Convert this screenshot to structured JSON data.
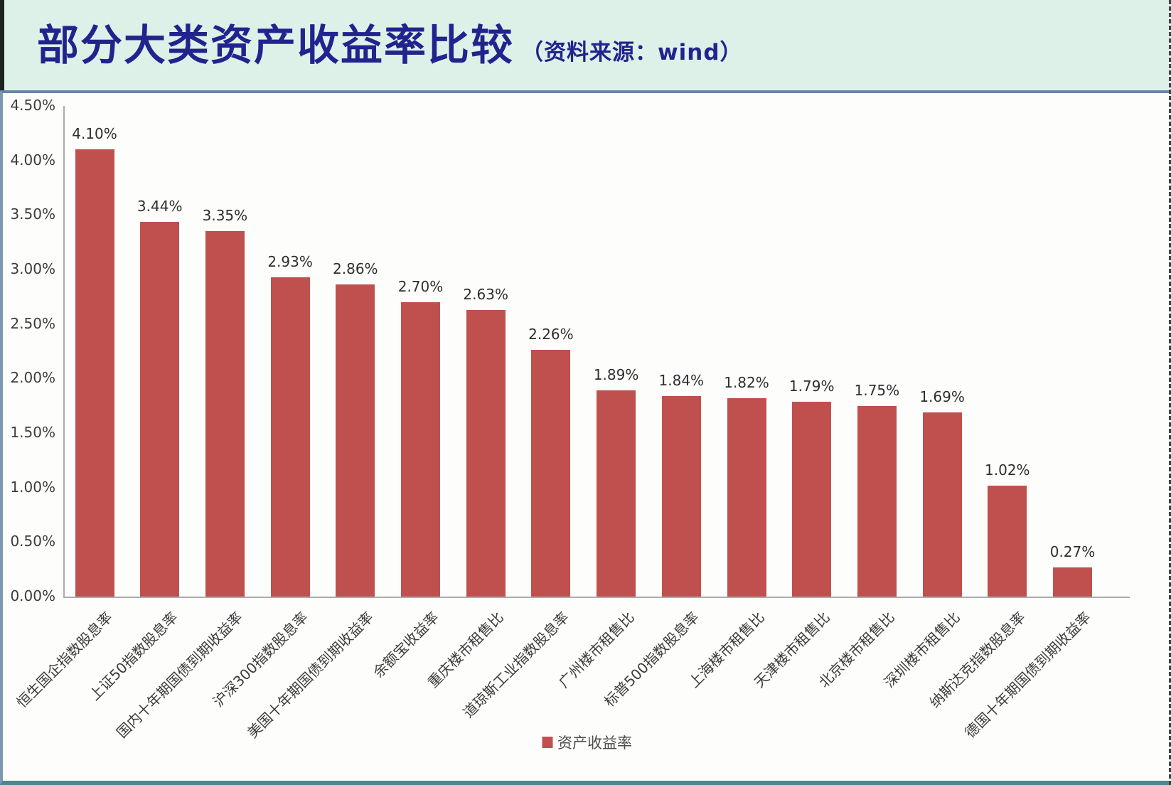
{
  "header": {
    "title": "部分大类资产收益率比较",
    "source_note": "（资料来源：wind）"
  },
  "colors": {
    "bar": "#c0504d",
    "title_text": "#23238e",
    "header_background": "#def1e8",
    "axis_line": "#ababab"
  },
  "chart_data": {
    "type": "bar",
    "title": "部分大类资产收益率比较（资料来源：wind）",
    "legend": "资产收益率",
    "legend_position": "bottom",
    "grid": false,
    "xlabel": "",
    "ylabel": "",
    "ylim": [
      0,
      4.5
    ],
    "ytick_step": 0.5,
    "ytick_labels": [
      "0.00%",
      "0.50%",
      "1.00%",
      "1.50%",
      "2.00%",
      "2.50%",
      "3.00%",
      "3.50%",
      "4.00%",
      "4.50%"
    ],
    "bar_color": "#c0504d",
    "categories": [
      "恒生国企指数股息率",
      "上证50指数股息率",
      "国内十年期国债到期收益率",
      "沪深300指数股息率",
      "美国十年期国债到期收益率",
      "余额宝收益率",
      "重庆楼市租售比",
      "道琼斯工业指数股息率",
      "广州楼市租售比",
      "标普500指数股息率",
      "上海楼市租售比",
      "天津楼市租售比",
      "北京楼市租售比",
      "深圳楼市租售比",
      "纳斯达克指数股息率",
      "德国十年期国债到期收益率"
    ],
    "values": [
      4.1,
      3.44,
      3.35,
      2.93,
      2.86,
      2.7,
      2.63,
      2.26,
      1.89,
      1.84,
      1.82,
      1.79,
      1.75,
      1.69,
      1.02,
      0.27
    ],
    "value_labels": [
      "4.10%",
      "3.44%",
      "3.35%",
      "2.93%",
      "2.86%",
      "2.70%",
      "2.63%",
      "2.26%",
      "1.89%",
      "1.84%",
      "1.82%",
      "1.79%",
      "1.75%",
      "1.69%",
      "1.02%",
      "0.27%"
    ]
  }
}
